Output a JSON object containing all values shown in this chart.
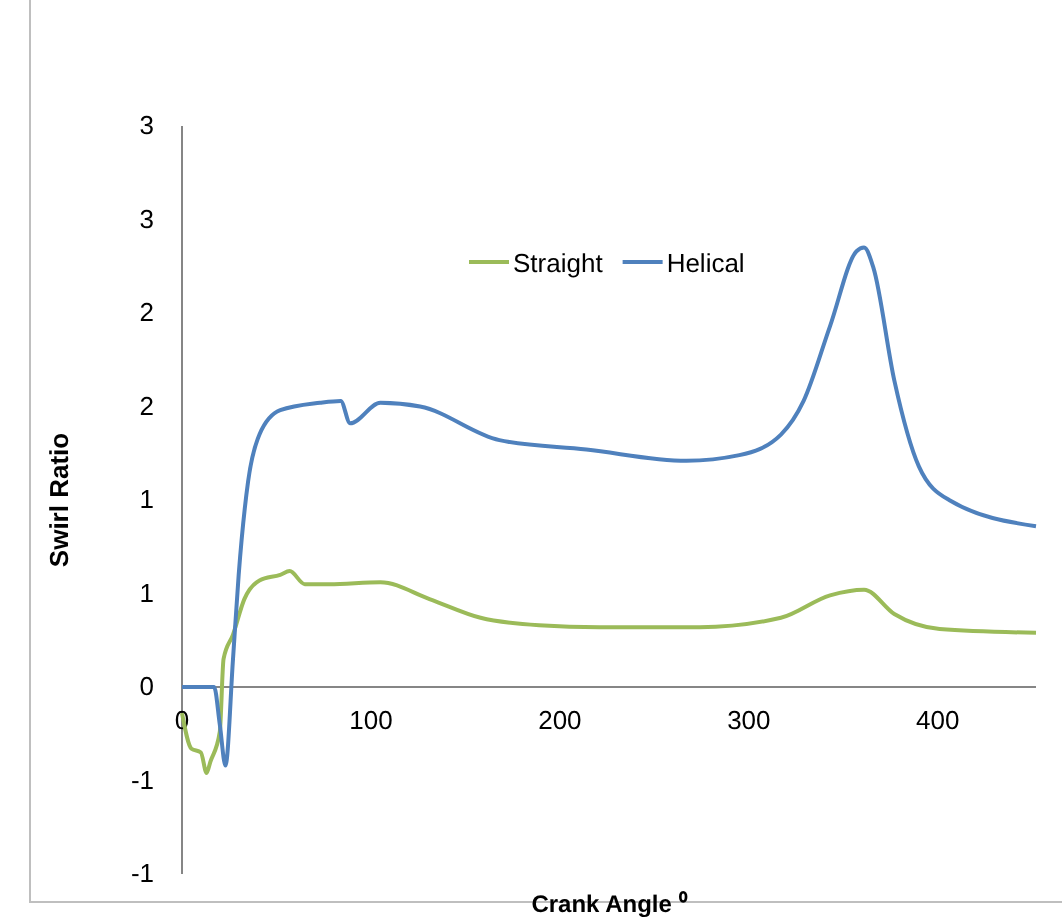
{
  "chart_data": {
    "type": "line",
    "xlabel": "Crank Angle ⁰",
    "ylabel": "Swirl Ratio",
    "xlim": [
      0,
      452
    ],
    "xticks": [
      0,
      100,
      200,
      300,
      400
    ],
    "ylim": [
      -1,
      3
    ],
    "yticks": [
      {
        "value": -1,
        "label": "-1"
      },
      {
        "value": -0.5,
        "label": "-1"
      },
      {
        "value": 0,
        "label": "0"
      },
      {
        "value": 0.5,
        "label": "1"
      },
      {
        "value": 1,
        "label": "1"
      },
      {
        "value": 1.5,
        "label": "2"
      },
      {
        "value": 2,
        "label": "2"
      },
      {
        "value": 2.5,
        "label": "3"
      },
      {
        "value": 3,
        "label": "3"
      }
    ],
    "grid": false,
    "legend": "top",
    "marker": "none",
    "line_style": "solid",
    "series": [
      {
        "name": "Straight",
        "color": "#9bbb59",
        "x": [
          0,
          5,
          10,
          13,
          15,
          20,
          22,
          27,
          33,
          41,
          52,
          57,
          65,
          78,
          105,
          131,
          158,
          189,
          221,
          274,
          317,
          343,
          361,
          377,
          401,
          452
        ],
        "values": [
          -0.14,
          -0.33,
          -0.35,
          -0.46,
          -0.4,
          -0.24,
          0.15,
          0.28,
          0.47,
          0.57,
          0.6,
          0.62,
          0.55,
          0.55,
          0.56,
          0.47,
          0.37,
          0.33,
          0.32,
          0.32,
          0.37,
          0.49,
          0.52,
          0.39,
          0.31,
          0.29
        ]
      },
      {
        "name": "Helical",
        "color": "#4f81bd",
        "x": [
          0,
          17,
          20,
          23,
          27,
          30,
          35,
          41,
          52,
          73,
          84,
          89,
          105,
          126,
          168,
          214,
          267,
          295,
          317,
          329,
          343,
          357,
          361,
          366,
          377,
          390,
          406,
          452
        ],
        "values": [
          0,
          0,
          -0.2,
          -0.42,
          0.15,
          0.6,
          1.1,
          1.35,
          1.48,
          1.52,
          1.53,
          1.41,
          1.52,
          1.5,
          1.32,
          1.27,
          1.21,
          1.24,
          1.35,
          1.53,
          1.93,
          2.33,
          2.35,
          2.24,
          1.64,
          1.18,
          1.0,
          0.86
        ]
      }
    ]
  }
}
